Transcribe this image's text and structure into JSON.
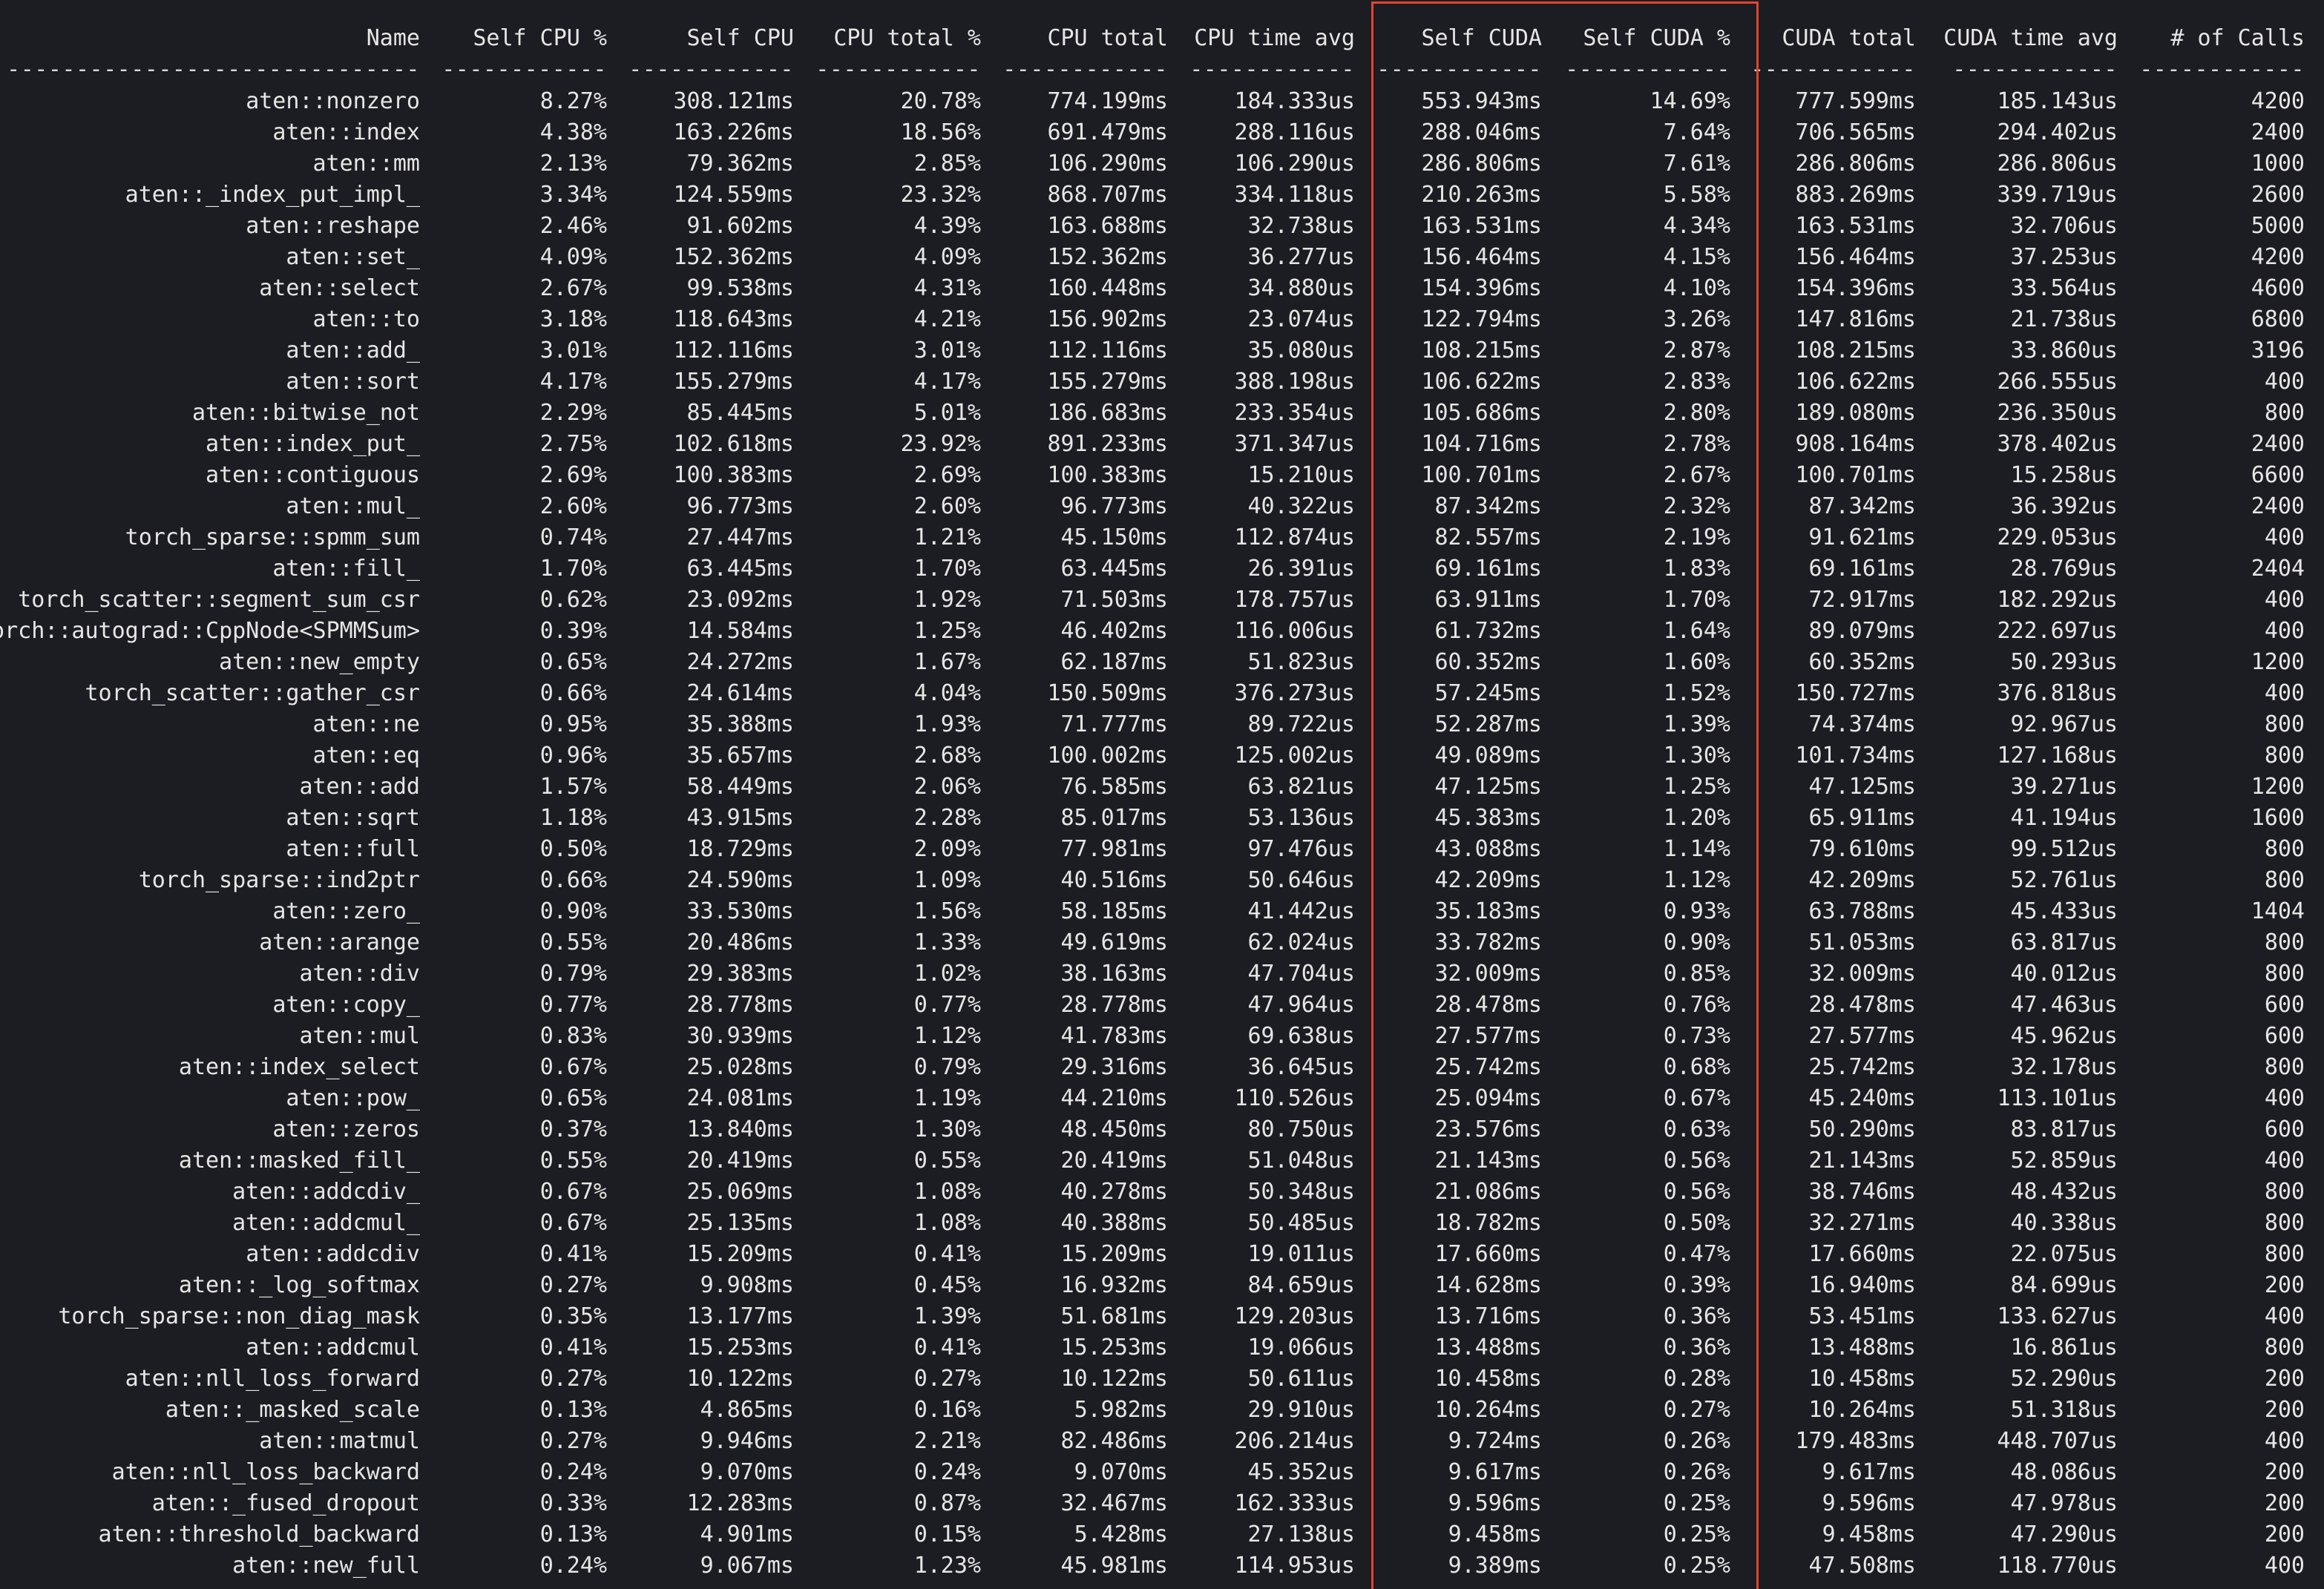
{
  "headers": [
    "Name",
    "Self CPU %",
    "Self CPU",
    "CPU total %",
    "CPU total",
    "CPU time avg",
    "Self CUDA",
    "Self CUDA %",
    "CUDA total",
    "CUDA time avg",
    "# of Calls"
  ],
  "separators": [
    "------------------------------",
    "------------",
    "------------",
    "------------",
    "------------",
    "------------",
    "------------",
    "------------",
    "------------",
    "------------",
    "------------"
  ],
  "highlight": {
    "color": "#e2452f",
    "columns": [
      "Self CUDA",
      "Self CUDA %"
    ]
  },
  "rows": [
    [
      "aten::nonzero",
      "8.27%",
      "308.121ms",
      "20.78%",
      "774.199ms",
      "184.333us",
      "553.943ms",
      "14.69%",
      "777.599ms",
      "185.143us",
      "4200"
    ],
    [
      "aten::index",
      "4.38%",
      "163.226ms",
      "18.56%",
      "691.479ms",
      "288.116us",
      "288.046ms",
      "7.64%",
      "706.565ms",
      "294.402us",
      "2400"
    ],
    [
      "aten::mm",
      "2.13%",
      "79.362ms",
      "2.85%",
      "106.290ms",
      "106.290us",
      "286.806ms",
      "7.61%",
      "286.806ms",
      "286.806us",
      "1000"
    ],
    [
      "aten::_index_put_impl_",
      "3.34%",
      "124.559ms",
      "23.32%",
      "868.707ms",
      "334.118us",
      "210.263ms",
      "5.58%",
      "883.269ms",
      "339.719us",
      "2600"
    ],
    [
      "aten::reshape",
      "2.46%",
      "91.602ms",
      "4.39%",
      "163.688ms",
      "32.738us",
      "163.531ms",
      "4.34%",
      "163.531ms",
      "32.706us",
      "5000"
    ],
    [
      "aten::set_",
      "4.09%",
      "152.362ms",
      "4.09%",
      "152.362ms",
      "36.277us",
      "156.464ms",
      "4.15%",
      "156.464ms",
      "37.253us",
      "4200"
    ],
    [
      "aten::select",
      "2.67%",
      "99.538ms",
      "4.31%",
      "160.448ms",
      "34.880us",
      "154.396ms",
      "4.10%",
      "154.396ms",
      "33.564us",
      "4600"
    ],
    [
      "aten::to",
      "3.18%",
      "118.643ms",
      "4.21%",
      "156.902ms",
      "23.074us",
      "122.794ms",
      "3.26%",
      "147.816ms",
      "21.738us",
      "6800"
    ],
    [
      "aten::add_",
      "3.01%",
      "112.116ms",
      "3.01%",
      "112.116ms",
      "35.080us",
      "108.215ms",
      "2.87%",
      "108.215ms",
      "33.860us",
      "3196"
    ],
    [
      "aten::sort",
      "4.17%",
      "155.279ms",
      "4.17%",
      "155.279ms",
      "388.198us",
      "106.622ms",
      "2.83%",
      "106.622ms",
      "266.555us",
      "400"
    ],
    [
      "aten::bitwise_not",
      "2.29%",
      "85.445ms",
      "5.01%",
      "186.683ms",
      "233.354us",
      "105.686ms",
      "2.80%",
      "189.080ms",
      "236.350us",
      "800"
    ],
    [
      "aten::index_put_",
      "2.75%",
      "102.618ms",
      "23.92%",
      "891.233ms",
      "371.347us",
      "104.716ms",
      "2.78%",
      "908.164ms",
      "378.402us",
      "2400"
    ],
    [
      "aten::contiguous",
      "2.69%",
      "100.383ms",
      "2.69%",
      "100.383ms",
      "15.210us",
      "100.701ms",
      "2.67%",
      "100.701ms",
      "15.258us",
      "6600"
    ],
    [
      "aten::mul_",
      "2.60%",
      "96.773ms",
      "2.60%",
      "96.773ms",
      "40.322us",
      "87.342ms",
      "2.32%",
      "87.342ms",
      "36.392us",
      "2400"
    ],
    [
      "torch_sparse::spmm_sum",
      "0.74%",
      "27.447ms",
      "1.21%",
      "45.150ms",
      "112.874us",
      "82.557ms",
      "2.19%",
      "91.621ms",
      "229.053us",
      "400"
    ],
    [
      "aten::fill_",
      "1.70%",
      "63.445ms",
      "1.70%",
      "63.445ms",
      "26.391us",
      "69.161ms",
      "1.83%",
      "69.161ms",
      "28.769us",
      "2404"
    ],
    [
      "torch_scatter::segment_sum_csr",
      "0.62%",
      "23.092ms",
      "1.92%",
      "71.503ms",
      "178.757us",
      "63.911ms",
      "1.70%",
      "72.917ms",
      "182.292us",
      "400"
    ],
    [
      "orch::autograd::CppNode<SPMMSum>",
      "0.39%",
      "14.584ms",
      "1.25%",
      "46.402ms",
      "116.006us",
      "61.732ms",
      "1.64%",
      "89.079ms",
      "222.697us",
      "400"
    ],
    [
      "aten::new_empty",
      "0.65%",
      "24.272ms",
      "1.67%",
      "62.187ms",
      "51.823us",
      "60.352ms",
      "1.60%",
      "60.352ms",
      "50.293us",
      "1200"
    ],
    [
      "torch_scatter::gather_csr",
      "0.66%",
      "24.614ms",
      "4.04%",
      "150.509ms",
      "376.273us",
      "57.245ms",
      "1.52%",
      "150.727ms",
      "376.818us",
      "400"
    ],
    [
      "aten::ne",
      "0.95%",
      "35.388ms",
      "1.93%",
      "71.777ms",
      "89.722us",
      "52.287ms",
      "1.39%",
      "74.374ms",
      "92.967us",
      "800"
    ],
    [
      "aten::eq",
      "0.96%",
      "35.657ms",
      "2.68%",
      "100.002ms",
      "125.002us",
      "49.089ms",
      "1.30%",
      "101.734ms",
      "127.168us",
      "800"
    ],
    [
      "aten::add",
      "1.57%",
      "58.449ms",
      "2.06%",
      "76.585ms",
      "63.821us",
      "47.125ms",
      "1.25%",
      "47.125ms",
      "39.271us",
      "1200"
    ],
    [
      "aten::sqrt",
      "1.18%",
      "43.915ms",
      "2.28%",
      "85.017ms",
      "53.136us",
      "45.383ms",
      "1.20%",
      "65.911ms",
      "41.194us",
      "1600"
    ],
    [
      "aten::full",
      "0.50%",
      "18.729ms",
      "2.09%",
      "77.981ms",
      "97.476us",
      "43.088ms",
      "1.14%",
      "79.610ms",
      "99.512us",
      "800"
    ],
    [
      "torch_sparse::ind2ptr",
      "0.66%",
      "24.590ms",
      "1.09%",
      "40.516ms",
      "50.646us",
      "42.209ms",
      "1.12%",
      "42.209ms",
      "52.761us",
      "800"
    ],
    [
      "aten::zero_",
      "0.90%",
      "33.530ms",
      "1.56%",
      "58.185ms",
      "41.442us",
      "35.183ms",
      "0.93%",
      "63.788ms",
      "45.433us",
      "1404"
    ],
    [
      "aten::arange",
      "0.55%",
      "20.486ms",
      "1.33%",
      "49.619ms",
      "62.024us",
      "33.782ms",
      "0.90%",
      "51.053ms",
      "63.817us",
      "800"
    ],
    [
      "aten::div",
      "0.79%",
      "29.383ms",
      "1.02%",
      "38.163ms",
      "47.704us",
      "32.009ms",
      "0.85%",
      "32.009ms",
      "40.012us",
      "800"
    ],
    [
      "aten::copy_",
      "0.77%",
      "28.778ms",
      "0.77%",
      "28.778ms",
      "47.964us",
      "28.478ms",
      "0.76%",
      "28.478ms",
      "47.463us",
      "600"
    ],
    [
      "aten::mul",
      "0.83%",
      "30.939ms",
      "1.12%",
      "41.783ms",
      "69.638us",
      "27.577ms",
      "0.73%",
      "27.577ms",
      "45.962us",
      "600"
    ],
    [
      "aten::index_select",
      "0.67%",
      "25.028ms",
      "0.79%",
      "29.316ms",
      "36.645us",
      "25.742ms",
      "0.68%",
      "25.742ms",
      "32.178us",
      "800"
    ],
    [
      "aten::pow_",
      "0.65%",
      "24.081ms",
      "1.19%",
      "44.210ms",
      "110.526us",
      "25.094ms",
      "0.67%",
      "45.240ms",
      "113.101us",
      "400"
    ],
    [
      "aten::zeros",
      "0.37%",
      "13.840ms",
      "1.30%",
      "48.450ms",
      "80.750us",
      "23.576ms",
      "0.63%",
      "50.290ms",
      "83.817us",
      "600"
    ],
    [
      "aten::masked_fill_",
      "0.55%",
      "20.419ms",
      "0.55%",
      "20.419ms",
      "51.048us",
      "21.143ms",
      "0.56%",
      "21.143ms",
      "52.859us",
      "400"
    ],
    [
      "aten::addcdiv_",
      "0.67%",
      "25.069ms",
      "1.08%",
      "40.278ms",
      "50.348us",
      "21.086ms",
      "0.56%",
      "38.746ms",
      "48.432us",
      "800"
    ],
    [
      "aten::addcmul_",
      "0.67%",
      "25.135ms",
      "1.08%",
      "40.388ms",
      "50.485us",
      "18.782ms",
      "0.50%",
      "32.271ms",
      "40.338us",
      "800"
    ],
    [
      "aten::addcdiv",
      "0.41%",
      "15.209ms",
      "0.41%",
      "15.209ms",
      "19.011us",
      "17.660ms",
      "0.47%",
      "17.660ms",
      "22.075us",
      "800"
    ],
    [
      "aten::_log_softmax",
      "0.27%",
      "9.908ms",
      "0.45%",
      "16.932ms",
      "84.659us",
      "14.628ms",
      "0.39%",
      "16.940ms",
      "84.699us",
      "200"
    ],
    [
      "torch_sparse::non_diag_mask",
      "0.35%",
      "13.177ms",
      "1.39%",
      "51.681ms",
      "129.203us",
      "13.716ms",
      "0.36%",
      "53.451ms",
      "133.627us",
      "400"
    ],
    [
      "aten::addcmul",
      "0.41%",
      "15.253ms",
      "0.41%",
      "15.253ms",
      "19.066us",
      "13.488ms",
      "0.36%",
      "13.488ms",
      "16.861us",
      "800"
    ],
    [
      "aten::nll_loss_forward",
      "0.27%",
      "10.122ms",
      "0.27%",
      "10.122ms",
      "50.611us",
      "10.458ms",
      "0.28%",
      "10.458ms",
      "52.290us",
      "200"
    ],
    [
      "aten::_masked_scale",
      "0.13%",
      "4.865ms",
      "0.16%",
      "5.982ms",
      "29.910us",
      "10.264ms",
      "0.27%",
      "10.264ms",
      "51.318us",
      "200"
    ],
    [
      "aten::matmul",
      "0.27%",
      "9.946ms",
      "2.21%",
      "82.486ms",
      "206.214us",
      "9.724ms",
      "0.26%",
      "179.483ms",
      "448.707us",
      "400"
    ],
    [
      "aten::nll_loss_backward",
      "0.24%",
      "9.070ms",
      "0.24%",
      "9.070ms",
      "45.352us",
      "9.617ms",
      "0.26%",
      "9.617ms",
      "48.086us",
      "200"
    ],
    [
      "aten::_fused_dropout",
      "0.33%",
      "12.283ms",
      "0.87%",
      "32.467ms",
      "162.333us",
      "9.596ms",
      "0.25%",
      "9.596ms",
      "47.978us",
      "200"
    ],
    [
      "aten::threshold_backward",
      "0.13%",
      "4.901ms",
      "0.15%",
      "5.428ms",
      "27.138us",
      "9.458ms",
      "0.25%",
      "9.458ms",
      "47.290us",
      "200"
    ],
    [
      "aten::new_full",
      "0.24%",
      "9.067ms",
      "1.23%",
      "45.981ms",
      "114.953us",
      "9.389ms",
      "0.25%",
      "47.508ms",
      "118.770us",
      "400"
    ]
  ]
}
